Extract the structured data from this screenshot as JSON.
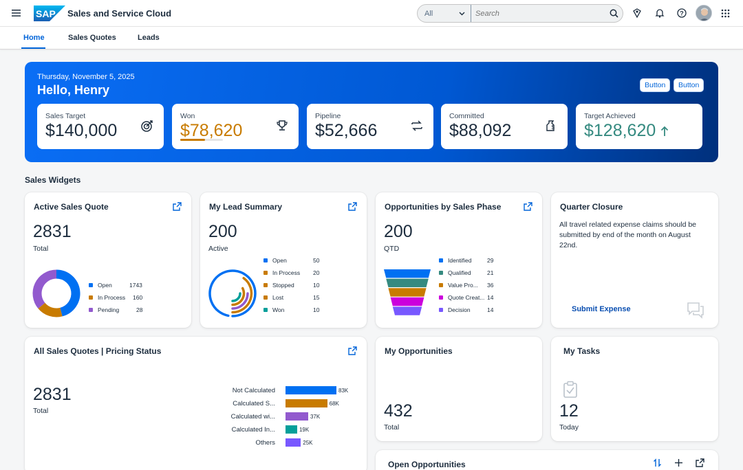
{
  "shell": {
    "app_title": "Sales and Service Cloud",
    "logo_text": "SAP",
    "search_scope": "All",
    "search_placeholder": "Search"
  },
  "tabs": [
    {
      "label": "Home",
      "active": true
    },
    {
      "label": "Sales Quotes",
      "active": false
    },
    {
      "label": "Leads",
      "active": false
    }
  ],
  "banner": {
    "date": "Thursday, November 5, 2025",
    "greeting": "Hello, Henry",
    "buttons": [
      "Button",
      "Button"
    ],
    "kpis": [
      {
        "label": "Sales Target",
        "value": "$140,000",
        "icon": "target-icon",
        "color": "#1d2d3e"
      },
      {
        "label": "Won",
        "value": "$78,620",
        "icon": "trophy-icon",
        "color": "#c87b00",
        "progress": 0.58
      },
      {
        "label": "Pipeline",
        "value": "$52,666",
        "icon": "transfer-icon",
        "color": "#1d2d3e"
      },
      {
        "label": "Committed",
        "value": "$88,092",
        "icon": "money-bag-icon",
        "color": "#1d2d3e"
      },
      {
        "label": "Target Achieved",
        "value": "$128,620",
        "icon": "arrow-up-icon",
        "color": "#358a80"
      }
    ]
  },
  "sections": {
    "sales_widgets": "Sales Widgets"
  },
  "cards": {
    "active_sales_quote": {
      "title": "Active Sales Quote",
      "value": "2831",
      "sub": "Total",
      "legend": [
        {
          "name": "Open",
          "value": "1743",
          "color": "#0070f2"
        },
        {
          "name": "In Process",
          "value": "160",
          "color": "#c87b00"
        },
        {
          "name": "Pending",
          "value": "28",
          "color": "#925ace"
        }
      ]
    },
    "my_lead_summary": {
      "title": "My Lead Summary",
      "value": "200",
      "sub": "Active",
      "legend": [
        {
          "name": "Open",
          "value": "50",
          "color": "#0070f2"
        },
        {
          "name": "In Process",
          "value": "20",
          "color": "#c87b00"
        },
        {
          "name": "Stopped",
          "value": "10",
          "color": "#c87b00"
        },
        {
          "name": "Lost",
          "value": "15",
          "color": "#c87b00"
        },
        {
          "name": "Won",
          "value": "10",
          "color": "#049f9a"
        }
      ]
    },
    "opportunities_by_phase": {
      "title": "Opportunities by Sales Phase",
      "value": "200",
      "sub": "QTD",
      "legend": [
        {
          "name": "Identified",
          "value": "29",
          "color": "#0070f2"
        },
        {
          "name": "Qualified",
          "value": "21",
          "color": "#358a80"
        },
        {
          "name": "Value Pro...",
          "value": "36",
          "color": "#c87b00"
        },
        {
          "name": "Quote Creat...",
          "value": "14",
          "color": "#cc00dc"
        },
        {
          "name": "Decision",
          "value": "14",
          "color": "#7858ff"
        }
      ]
    },
    "quarter_closure": {
      "title": "Quarter Closure",
      "text": "All travel related expense claims should be submitted by end of the month on August 22nd.",
      "link": "Submit Expense"
    },
    "pricing_status": {
      "title": "All Sales Quotes | Pricing Status",
      "value": "2831",
      "sub": "Total",
      "bars": [
        {
          "name": "Not Calculated",
          "value": 83,
          "label": "83K",
          "color": "#0070f2"
        },
        {
          "name": "Calculated S...",
          "value": 68,
          "label": "68K",
          "color": "#c87b00"
        },
        {
          "name": "Calculated wi...",
          "value": 37,
          "label": "37K",
          "color": "#925ace"
        },
        {
          "name": "Calculated In...",
          "value": 19,
          "label": "19K",
          "color": "#049f9a"
        },
        {
          "name": "Others",
          "value": 25,
          "label": "25K",
          "color": "#7858ff"
        }
      ]
    },
    "my_opportunities": {
      "title": "My Opportunities",
      "value": "432",
      "sub": "Total"
    },
    "my_tasks": {
      "title": "My Tasks",
      "value": "12",
      "sub": "Today"
    },
    "open_opportunities": {
      "title": "Open Opportunities"
    }
  },
  "colors": {
    "brand": "#0064d9",
    "banner_start": "#0a6ef5",
    "banner_end": "#00307c"
  }
}
